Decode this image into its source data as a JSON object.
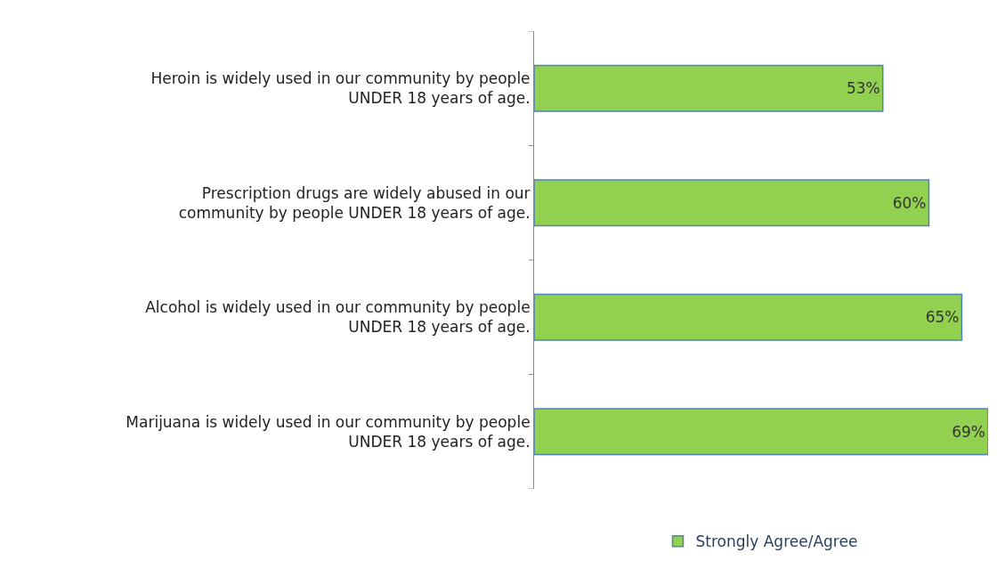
{
  "chart_data": {
    "type": "bar",
    "orientation": "horizontal",
    "categories": [
      "Heroin is widely used in our community by people UNDER 18 years of age.",
      "Prescription drugs are widely abused in our community by people UNDER 18 years of age.",
      "Alcohol is widely used in our community by people UNDER 18 years of age.",
      "Marijuana is widely used in our community by people UNDER 18 years of age."
    ],
    "series": [
      {
        "name": "Strongly Agree/Agree",
        "color": "#92d050",
        "values": [
          53,
          60,
          65,
          69
        ],
        "value_labels": [
          "53%",
          "60%",
          "65%",
          "69%"
        ]
      }
    ],
    "legend": "bottom",
    "tick_labels": "y"
  }
}
